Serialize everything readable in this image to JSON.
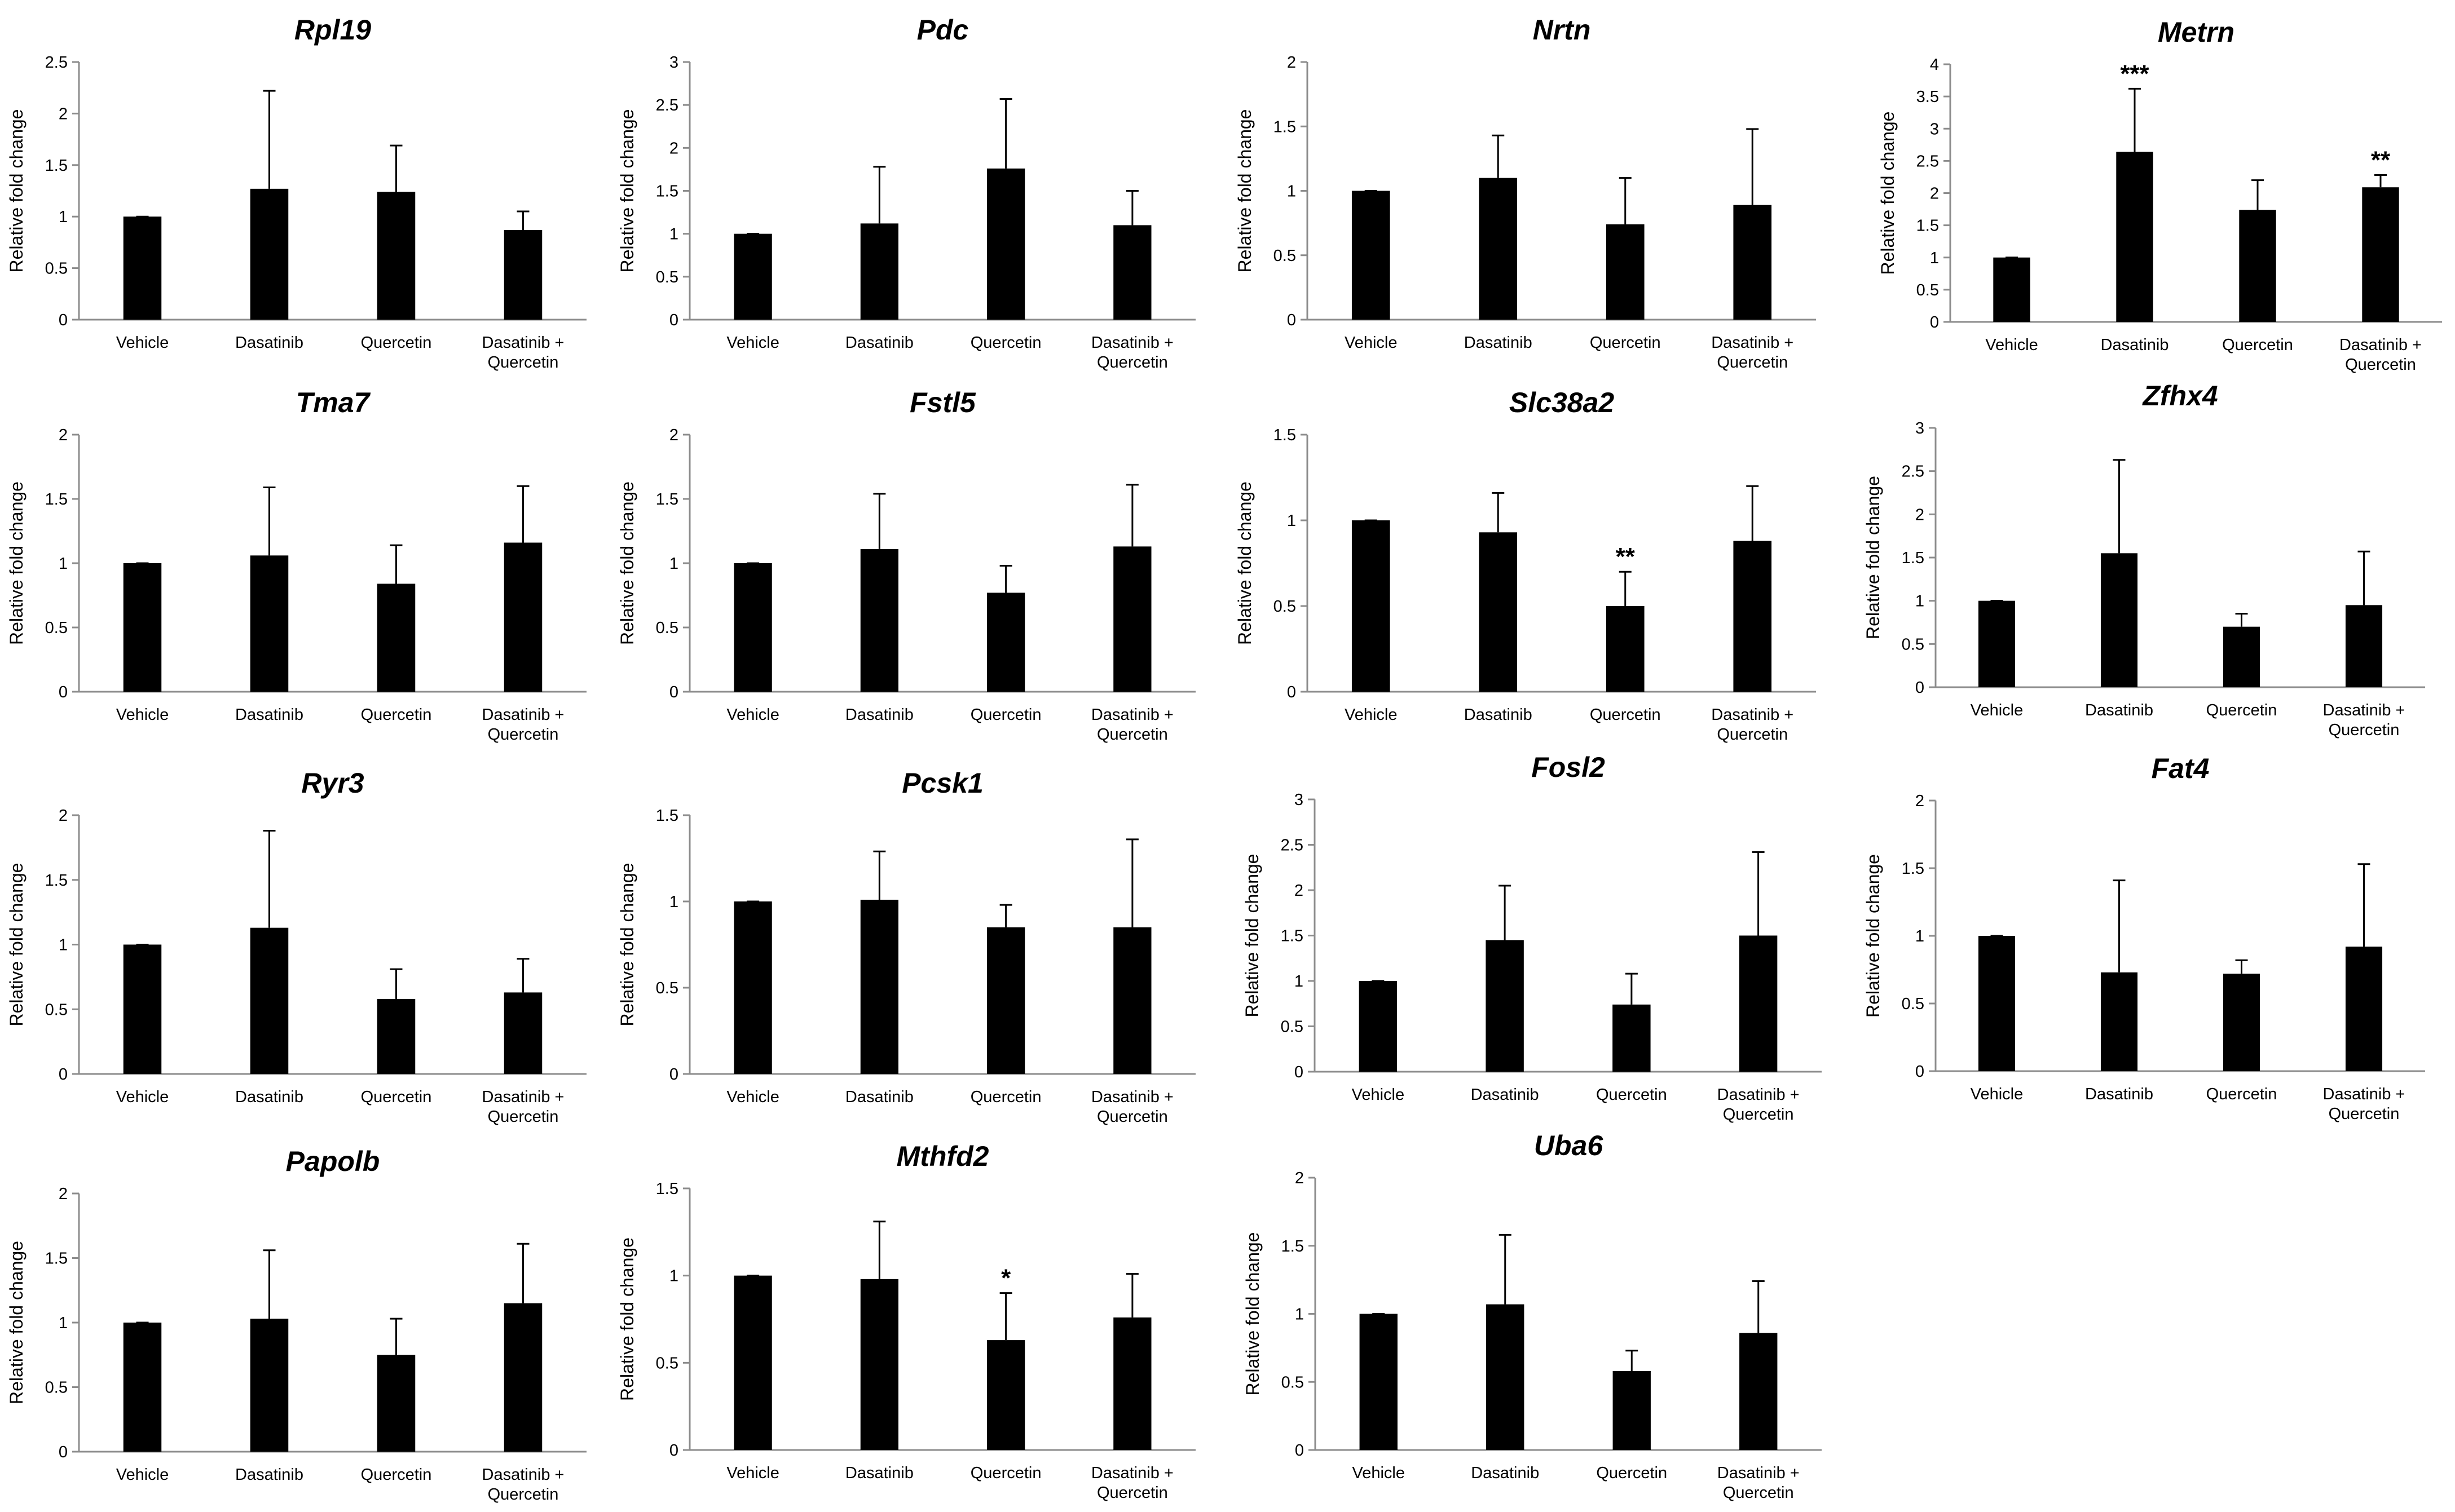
{
  "figure": {
    "categories": [
      [
        "Vehicle"
      ],
      [
        "Dasatinib"
      ],
      [
        "Quercetin"
      ],
      [
        "Dasatinib +",
        "Quercetin"
      ]
    ],
    "ylabel": "Relative fold change",
    "bar_color": "#000000"
  },
  "chart_data": [
    {
      "type": "bar",
      "title": "Rpl19",
      "ylabel": "Relative fold change",
      "categories": [
        "Vehicle",
        "Dasatinib",
        "Quercetin",
        "Dasatinib + Quercetin"
      ],
      "values": [
        1.0,
        1.27,
        1.24,
        0.87
      ],
      "errors": [
        0.0,
        0.95,
        0.45,
        0.18
      ],
      "significance": [
        "",
        "",
        "",
        ""
      ],
      "ylim": [
        0,
        2.5
      ],
      "yticks": [
        "0",
        "0.5",
        "1",
        "1.5",
        "2",
        "2.5"
      ]
    },
    {
      "type": "bar",
      "title": "Pdc",
      "ylabel": "Relative fold change",
      "categories": [
        "Vehicle",
        "Dasatinib",
        "Quercetin",
        "Dasatinib + Quercetin"
      ],
      "values": [
        1.0,
        1.12,
        1.76,
        1.1
      ],
      "errors": [
        0.0,
        0.66,
        0.81,
        0.4
      ],
      "significance": [
        "",
        "",
        "",
        ""
      ],
      "ylim": [
        0,
        3
      ],
      "yticks": [
        "0",
        "0.5",
        "1",
        "1.5",
        "2",
        "2.5",
        "3"
      ]
    },
    {
      "type": "bar",
      "title": "Nrtn",
      "ylabel": "Relative fold change",
      "categories": [
        "Vehicle",
        "Dasatinib",
        "Quercetin",
        "Dasatinib + Quercetin"
      ],
      "values": [
        1.0,
        1.1,
        0.74,
        0.89
      ],
      "errors": [
        0.0,
        0.33,
        0.36,
        0.59
      ],
      "significance": [
        "",
        "",
        "",
        ""
      ],
      "ylim": [
        0,
        2
      ],
      "yticks": [
        "0",
        "0.5",
        "1",
        "1.5",
        "2"
      ]
    },
    {
      "type": "bar",
      "title": "Metrn",
      "ylabel": "Relative fold change",
      "categories": [
        "Vehicle",
        "Dasatinib",
        "Quercetin",
        "Dasatinib + Quercetin"
      ],
      "values": [
        1.0,
        2.64,
        1.74,
        2.09
      ],
      "errors": [
        0.0,
        0.98,
        0.46,
        0.19
      ],
      "significance": [
        "",
        "***",
        "",
        "**"
      ],
      "ylim": [
        0,
        4
      ],
      "yticks": [
        "0",
        "0.5",
        "1",
        "1.5",
        "2",
        "2.5",
        "3",
        "3.5",
        "4"
      ]
    },
    {
      "type": "bar",
      "title": "Tma7",
      "ylabel": "Relative fold change",
      "categories": [
        "Vehicle",
        "Dasatinib",
        "Quercetin",
        "Dasatinib + Quercetin"
      ],
      "values": [
        1.0,
        1.06,
        0.84,
        1.16
      ],
      "errors": [
        0.0,
        0.53,
        0.3,
        0.44
      ],
      "significance": [
        "",
        "",
        "",
        ""
      ],
      "ylim": [
        0,
        2
      ],
      "yticks": [
        "0",
        "0.5",
        "1",
        "1.5",
        "2"
      ]
    },
    {
      "type": "bar",
      "title": "Fstl5",
      "ylabel": "Relative fold change",
      "categories": [
        "Vehicle",
        "Dasatinib",
        "Quercetin",
        "Dasatinib + Quercetin"
      ],
      "values": [
        1.0,
        1.11,
        0.77,
        1.13
      ],
      "errors": [
        0.0,
        0.43,
        0.21,
        0.48
      ],
      "significance": [
        "",
        "",
        "",
        ""
      ],
      "ylim": [
        0,
        2
      ],
      "yticks": [
        "0",
        "0.5",
        "1",
        "1.5",
        "2"
      ]
    },
    {
      "type": "bar",
      "title": "Slc38a2",
      "ylabel": "Relative fold change",
      "categories": [
        "Vehicle",
        "Dasatinib",
        "Quercetin",
        "Dasatinib + Quercetin"
      ],
      "values": [
        1.0,
        0.93,
        0.5,
        0.88
      ],
      "errors": [
        0.0,
        0.23,
        0.2,
        0.32
      ],
      "significance": [
        "",
        "",
        "**",
        ""
      ],
      "ylim": [
        0,
        1.5
      ],
      "yticks": [
        "0",
        "0.5",
        "1",
        "1.5"
      ]
    },
    {
      "type": "bar",
      "title": "Zfhx4",
      "ylabel": "Relative fold change",
      "categories": [
        "Vehicle",
        "Dasatinib",
        "Quercetin",
        "Dasatinib + Quercetin"
      ],
      "values": [
        1.0,
        1.55,
        0.7,
        0.95
      ],
      "errors": [
        0.0,
        1.08,
        0.15,
        0.62
      ],
      "significance": [
        "",
        "",
        "",
        ""
      ],
      "ylim": [
        0,
        3
      ],
      "yticks": [
        "0",
        "0.5",
        "1",
        "1.5",
        "2",
        "2.5",
        "3"
      ]
    },
    {
      "type": "bar",
      "title": "Ryr3",
      "ylabel": "Relative fold change",
      "categories": [
        "Vehicle",
        "Dasatinib",
        "Quercetin",
        "Dasatinib + Quercetin"
      ],
      "values": [
        1.0,
        1.13,
        0.58,
        0.63
      ],
      "errors": [
        0.0,
        0.75,
        0.23,
        0.26
      ],
      "significance": [
        "",
        "",
        "",
        ""
      ],
      "ylim": [
        0,
        2
      ],
      "yticks": [
        "0",
        "0.5",
        "1",
        "1.5",
        "2"
      ]
    },
    {
      "type": "bar",
      "title": "Pcsk1",
      "ylabel": "Relative fold change",
      "categories": [
        "Vehicle",
        "Dasatinib",
        "Quercetin",
        "Dasatinib + Quercetin"
      ],
      "values": [
        1.0,
        1.01,
        0.85,
        0.85
      ],
      "errors": [
        0.0,
        0.28,
        0.13,
        0.51
      ],
      "significance": [
        "",
        "",
        "",
        ""
      ],
      "ylim": [
        0,
        1.5
      ],
      "yticks": [
        "0",
        "0.5",
        "1",
        "1.5"
      ]
    },
    {
      "type": "bar",
      "title": "Fosl2",
      "ylabel": "Relative fold change",
      "categories": [
        "Vehicle",
        "Dasatinib",
        "Quercetin",
        "Dasatinib + Quercetin"
      ],
      "values": [
        1.0,
        1.45,
        0.74,
        1.5
      ],
      "errors": [
        0.0,
        0.6,
        0.34,
        0.92
      ],
      "significance": [
        "",
        "",
        "",
        ""
      ],
      "ylim": [
        0,
        3
      ],
      "yticks": [
        "0",
        "0.5",
        "1",
        "1.5",
        "2",
        "2.5",
        "3"
      ]
    },
    {
      "type": "bar",
      "title": "Fat4",
      "ylabel": "Relative fold change",
      "categories": [
        "Vehicle",
        "Dasatinib",
        "Quercetin",
        "Dasatinib + Quercetin"
      ],
      "values": [
        1.0,
        0.73,
        0.72,
        0.92
      ],
      "errors": [
        0.0,
        0.68,
        0.1,
        0.61
      ],
      "significance": [
        "",
        "",
        "",
        ""
      ],
      "ylim": [
        0,
        2
      ],
      "yticks": [
        "0",
        "0.5",
        "1",
        "1.5",
        "2"
      ]
    },
    {
      "type": "bar",
      "title": "Papolb",
      "ylabel": "Relative fold change",
      "categories": [
        "Vehicle",
        "Dasatinib",
        "Quercetin",
        "Dasatinib + Quercetin"
      ],
      "values": [
        1.0,
        1.03,
        0.75,
        1.15
      ],
      "errors": [
        0.0,
        0.53,
        0.28,
        0.46
      ],
      "significance": [
        "",
        "",
        "",
        ""
      ],
      "ylim": [
        0,
        2
      ],
      "yticks": [
        "0",
        "0.5",
        "1",
        "1.5",
        "2"
      ]
    },
    {
      "type": "bar",
      "title": "Mthfd2",
      "ylabel": "Relative fold change",
      "categories": [
        "Vehicle",
        "Dasatinib",
        "Quercetin",
        "Dasatinib + Quercetin"
      ],
      "values": [
        1.0,
        0.98,
        0.63,
        0.76
      ],
      "errors": [
        0.0,
        0.33,
        0.27,
        0.25
      ],
      "significance": [
        "",
        "",
        "*",
        ""
      ],
      "ylim": [
        0,
        1.5
      ],
      "yticks": [
        "0",
        "0.5",
        "1",
        "1.5"
      ]
    },
    {
      "type": "bar",
      "title": "Uba6",
      "ylabel": "Relative fold change",
      "categories": [
        "Vehicle",
        "Dasatinib",
        "Quercetin",
        "Dasatinib + Quercetin"
      ],
      "values": [
        1.0,
        1.07,
        0.58,
        0.86
      ],
      "errors": [
        0.0,
        0.51,
        0.15,
        0.38
      ],
      "significance": [
        "",
        "",
        "",
        ""
      ],
      "ylim": [
        0,
        2
      ],
      "yticks": [
        "0",
        "0.5",
        "1",
        "1.5",
        "2"
      ]
    }
  ]
}
